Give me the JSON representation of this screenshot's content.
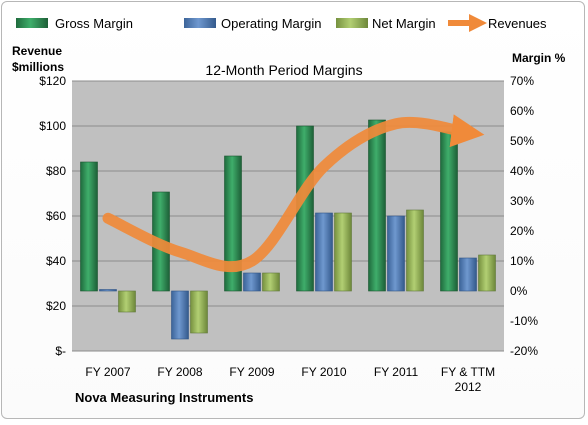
{
  "chart_data": {
    "type": "bar",
    "title": "12-Month Period Margins",
    "subtitle": "Nova Measuring Instruments",
    "categories": [
      [
        "FY 2007"
      ],
      [
        "FY 2008"
      ],
      [
        "FY 2009"
      ],
      [
        "FY 2010"
      ],
      [
        "FY 2011"
      ],
      [
        "FY & TTM",
        "2012"
      ]
    ],
    "series": [
      {
        "name": "Gross Margin",
        "type": "bar",
        "axis": "right",
        "color": "#2e8b57",
        "values": [
          43,
          33,
          45,
          55,
          57,
          53
        ]
      },
      {
        "name": "Operating Margin",
        "type": "bar",
        "axis": "right",
        "color": "#4f81bd",
        "values": [
          0.5,
          -16,
          6,
          26,
          25,
          11
        ]
      },
      {
        "name": "Net Margin",
        "type": "bar",
        "axis": "right",
        "color": "#9bbb59",
        "values": [
          -7,
          -14,
          6,
          26,
          27,
          12
        ]
      },
      {
        "name": "Revenues",
        "type": "line",
        "axis": "left",
        "color": "#f08a3a",
        "values": [
          59,
          44,
          40,
          82,
          101,
          97
        ]
      }
    ],
    "left_axis": {
      "label_line1": "Revenue",
      "label_line2": "$millions",
      "min": 0,
      "max": 120,
      "step": 20,
      "tick_labels": [
        "$-",
        "$20",
        "$40",
        "$60",
        "$80",
        "$100",
        "$120"
      ]
    },
    "right_axis": {
      "label": "Margin %",
      "min": -20,
      "max": 70,
      "step": 10,
      "tick_labels": [
        "-20%",
        "-10%",
        "0%",
        "10%",
        "20%",
        "30%",
        "40%",
        "50%",
        "60%",
        "70%"
      ]
    },
    "grid": true,
    "legend_position": "top",
    "colors": {
      "plot_bg": "#c0c0c0",
      "grid": "#8c8c8c"
    }
  }
}
